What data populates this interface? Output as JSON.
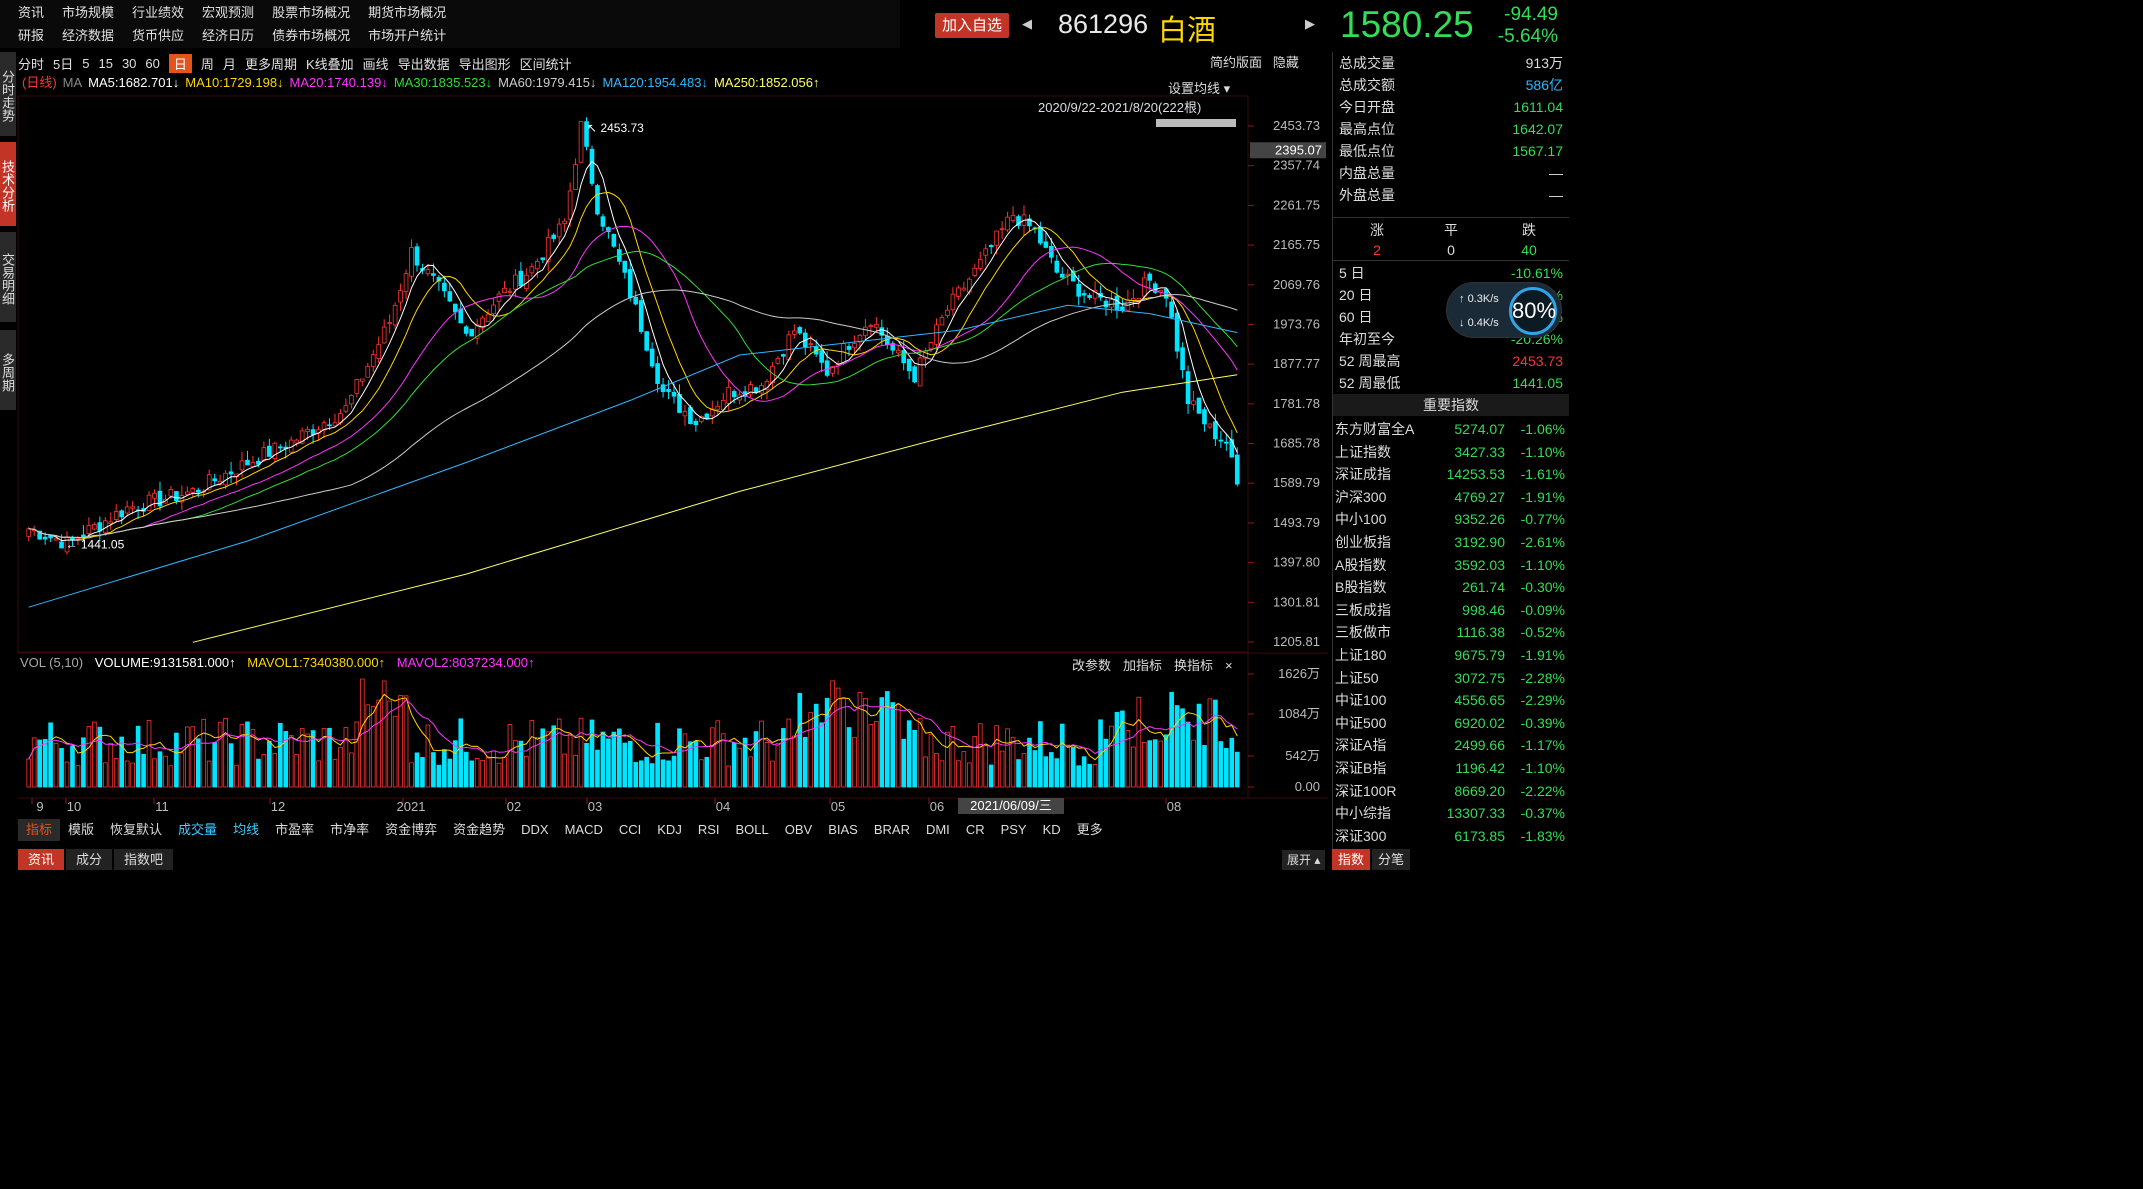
{
  "menu": {
    "row1": [
      "资讯",
      "市场规模",
      "行业绩效",
      "宏观预测",
      "股票市场概况",
      "期货市场概况"
    ],
    "row2": [
      "研报",
      "经济数据",
      "货币供应",
      "经济日历",
      "债券市场概况",
      "市场开户统计"
    ]
  },
  "header": {
    "fav_label": "加入自选",
    "prev_icon": "◀",
    "next_icon": "▶",
    "code": "861296",
    "name": "白酒",
    "price": "1580.25",
    "change": "-94.49",
    "change_pct": "-5.64%"
  },
  "left_tabs": [
    "分时走势",
    "技术分析",
    "交易明细",
    "多周期"
  ],
  "toolbar": {
    "items": [
      "分时",
      "5日",
      "5",
      "15",
      "30",
      "60",
      "日",
      "周",
      "月",
      "更多周期",
      "K线叠加",
      "画线",
      "导出数据",
      "导出图形",
      "区间统计"
    ],
    "active": "日",
    "right1": "简约版面",
    "right2": "隐藏"
  },
  "ma_legend": {
    "prefix": "(日线)",
    "ma": "MA",
    "items": [
      {
        "t": "MA5:1682.701↓",
        "c": "#ffffff"
      },
      {
        "t": "MA10:1729.198↓",
        "c": "#ffd400"
      },
      {
        "t": "MA20:1740.139↓",
        "c": "#ff33ff"
      },
      {
        "t": "MA30:1835.523↓",
        "c": "#33dd33"
      },
      {
        "t": "MA60:1979.415↓",
        "c": "#cccccc"
      },
      {
        "t": "MA120:1954.483↓",
        "c": "#2fb8ff"
      },
      {
        "t": "MA250:1852.056↑",
        "c": "#ffff66"
      }
    ]
  },
  "chart_opts": {
    "set_ma": "设置均线",
    "date_range": "2020/9/22-2021/8/20(222根)",
    "high_label": "2453.73",
    "low_label": "1441.05",
    "cursor_price": "2395.07",
    "cursor_date": "2021/06/09/三"
  },
  "y_ticks": [
    "2453.73",
    "2357.74",
    "2261.75",
    "2165.75",
    "2069.76",
    "1973.76",
    "1877.77",
    "1781.78",
    "1685.78",
    "1589.79",
    "1493.79",
    "1397.80",
    "1301.81",
    "1205.81"
  ],
  "x_ticks": [
    "9",
    "10",
    "11",
    "12",
    "2021",
    "02",
    "03",
    "04",
    "05",
    "06",
    "08"
  ],
  "vol": {
    "label": "VOL (5,10)",
    "volume": "VOLUME:9131581.000↑",
    "mavol1": "MAVOL1:7340380.000↑",
    "mavol2": "MAVOL2:8037234.000↑",
    "y_ticks": [
      "1626万",
      "1084万",
      "542万",
      "0.00"
    ],
    "actions": [
      "改参数",
      "加指标",
      "换指标"
    ],
    "close_icon": "×"
  },
  "ind_bar": [
    "指标",
    "模版",
    "恢复默认",
    "成交量",
    "均线",
    "市盈率",
    "市净率",
    "资金博弈",
    "资金趋势",
    "DDX",
    "MACD",
    "CCI",
    "KDJ",
    "RSI",
    "BOLL",
    "OBV",
    "BIAS",
    "BRAR",
    "DMI",
    "CR",
    "PSY",
    "KD",
    "更多"
  ],
  "bottom_tabs": [
    "资讯",
    "成分",
    "指数吧"
  ],
  "expand_label": "展开",
  "right_panel": {
    "stats": [
      [
        "总成交量",
        "913万"
      ],
      [
        "总成交额",
        "586亿"
      ],
      [
        "今日开盘",
        "1611.04"
      ],
      [
        "最高点位",
        "1642.07"
      ],
      [
        "最低点位",
        "1567.17"
      ],
      [
        "内盘总量",
        "—"
      ],
      [
        "外盘总量",
        "—"
      ]
    ],
    "updown": {
      "up_label": "涨",
      "flat_label": "平",
      "down_label": "跌",
      "up": "2",
      "flat": "0",
      "down": "40"
    },
    "perf": [
      [
        "5 日",
        "-10.61%"
      ],
      [
        "20 日",
        "-19.85%"
      ],
      [
        "60 日",
        "-16.64%"
      ],
      [
        "年初至今",
        "-20.26%"
      ],
      [
        "52 周最高",
        "2453.73"
      ],
      [
        "52 周最低",
        "1441.05"
      ]
    ],
    "speed": {
      "up": "0.3K/s",
      "down": "0.4K/s",
      "gauge": "80%"
    },
    "index_title": "重要指数",
    "indices": [
      [
        "东方财富全A",
        "5274.07",
        "-1.06%"
      ],
      [
        "上证指数",
        "3427.33",
        "-1.10%"
      ],
      [
        "深证成指",
        "14253.53",
        "-1.61%"
      ],
      [
        "沪深300",
        "4769.27",
        "-1.91%"
      ],
      [
        "中小100",
        "9352.26",
        "-0.77%"
      ],
      [
        "创业板指",
        "3192.90",
        "-2.61%"
      ],
      [
        "A股指数",
        "3592.03",
        "-1.10%"
      ],
      [
        "B股指数",
        "261.74",
        "-0.30%"
      ],
      [
        "三板成指",
        "998.46",
        "-0.09%"
      ],
      [
        "三板做市",
        "1116.38",
        "-0.52%"
      ],
      [
        "上证180",
        "9675.79",
        "-1.91%"
      ],
      [
        "上证50",
        "3072.75",
        "-2.28%"
      ],
      [
        "中证100",
        "4556.65",
        "-2.29%"
      ],
      [
        "中证500",
        "6920.02",
        "-0.39%"
      ],
      [
        "深证A指",
        "2499.66",
        "-1.17%"
      ],
      [
        "深证B指",
        "1196.42",
        "-1.10%"
      ],
      [
        "深证100R",
        "8669.20",
        "-2.22%"
      ],
      [
        "中小综指",
        "13307.33",
        "-0.37%"
      ],
      [
        "深证300",
        "6173.85",
        "-1.83%"
      ]
    ],
    "bottom": [
      "指数",
      "分笔"
    ]
  },
  "colors": {
    "up": "#ff3333",
    "down": "#00e5ff",
    "green": "#33dd55",
    "accent": "#e2541c",
    "brand": "#c23526"
  }
}
